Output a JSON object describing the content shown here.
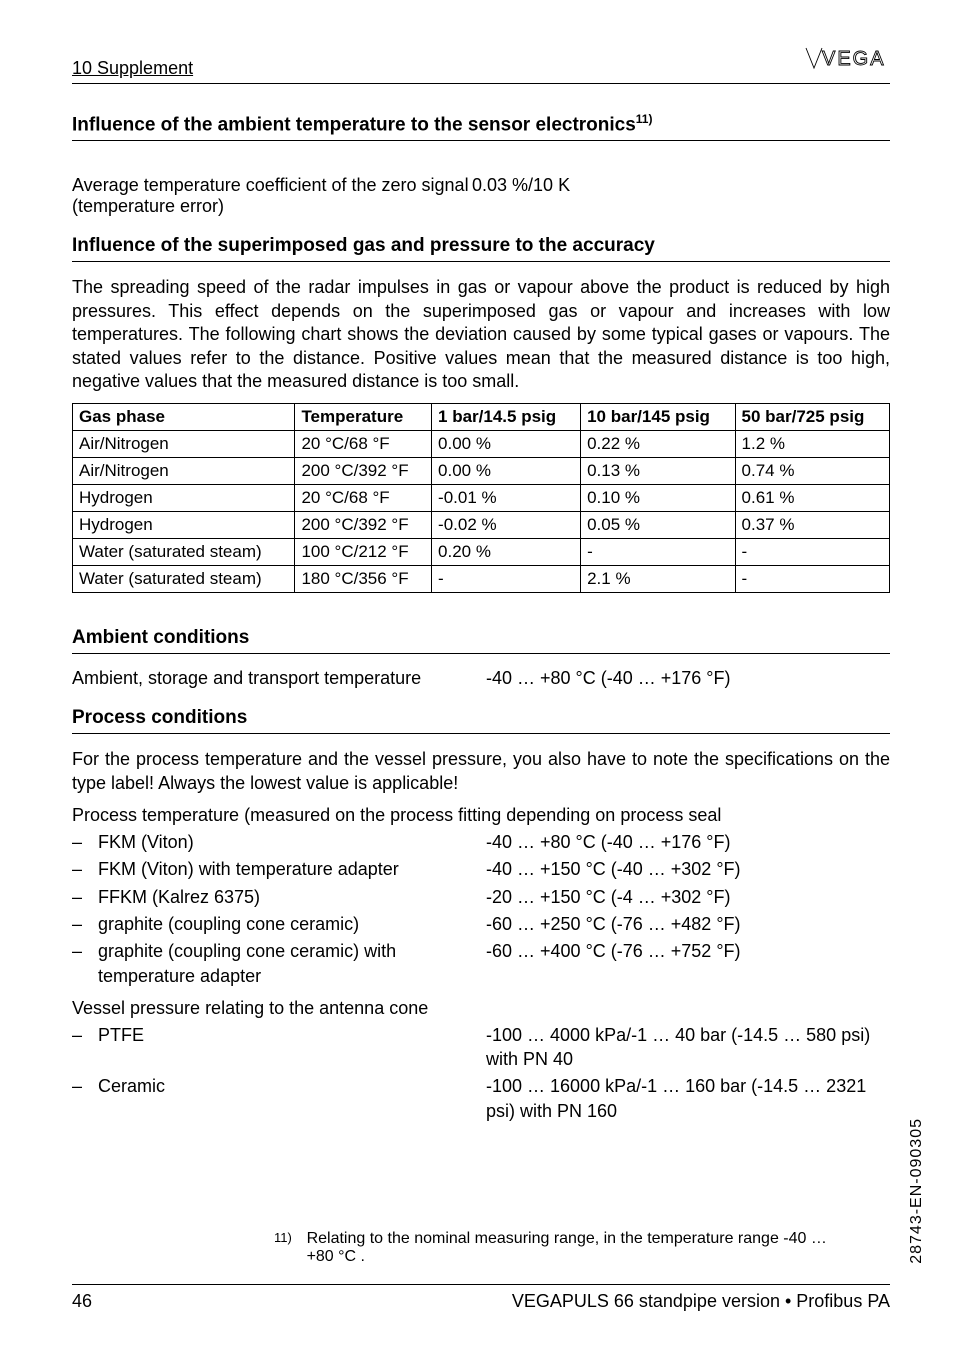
{
  "header": {
    "left": "10  Supplement",
    "logo_text": "VEGA"
  },
  "section1": {
    "title_html": "Influence of the ambient temperature to the sensor electronics",
    "title_sup": "11)",
    "row_label": "Average temperature coefficient of the zero signal (temperature error)",
    "row_value": "0.03 %/10 K"
  },
  "section2": {
    "title": "Influence of the superimposed gas and pressure to the accuracy",
    "para": "The spreading speed of the radar impulses in gas or vapour above the product is reduced by high pressures. This effect depends on the superimposed gas or vapour and increases with low temperatures. The following chart shows the deviation caused by some typical gases or vapours. The stated values refer to the distance. Positive values mean that the measured distance is too high, negative values that the measured distance is too small.",
    "table": {
      "headers": [
        "Gas phase",
        "Temperature",
        "1 bar/14.5 psig",
        "10 bar/145 psig",
        "50 bar/725 psig"
      ],
      "rows": [
        [
          "Air/Nitrogen",
          "20 °C/68 °F",
          "0.00 %",
          "0.22 %",
          "1.2 %"
        ],
        [
          "Air/Nitrogen",
          "200 °C/392 °F",
          "0.00 %",
          "0.13 %",
          "0.74 %"
        ],
        [
          "Hydrogen",
          "20 °C/68 °F",
          "-0.01 %",
          "0.10 %",
          "0.61 %"
        ],
        [
          "Hydrogen",
          "200 °C/392 °F",
          "-0.02 %",
          "0.05 %",
          "0.37 %"
        ],
        [
          "Water (saturated steam)",
          "100 °C/212 °F",
          "0.20 %",
          "-",
          "-"
        ],
        [
          "Water (saturated steam)",
          "180 °C/356 °F",
          "-",
          "2.1 %",
          "-"
        ]
      ]
    }
  },
  "section3": {
    "title": "Ambient conditions",
    "row_label": "Ambient, storage and transport temperature",
    "row_value": "-40 … +80 °C (-40 … +176 °F)"
  },
  "section4": {
    "title": "Process conditions",
    "para1": "For the process temperature and the vessel pressure, you also have to note the specifications on the type label! Always the lowest value is applicable!",
    "lead1": "Process temperature (measured on the process fitting depending on process seal",
    "list1": [
      {
        "label": "FKM (Viton)",
        "val": "-40 … +80 °C (-40 … +176 °F)"
      },
      {
        "label": "FKM (Viton) with temperature adapter",
        "val": "-40 … +150 °C (-40 … +302 °F)"
      },
      {
        "label": "FFKM (Kalrez 6375)",
        "val": "-20 … +150 °C (-4 … +302 °F)"
      },
      {
        "label": "graphite (coupling cone ceramic)",
        "val": "-60 … +250 °C (-76 … +482 °F)"
      },
      {
        "label": "graphite (coupling cone ceramic) with temperature adapter",
        "val": "-60 … +400 °C (-76 … +752 °F)"
      }
    ],
    "lead2": "Vessel pressure relating to the antenna cone",
    "list2": [
      {
        "label": "PTFE",
        "val": "-100 … 4000 kPa/-1 … 40 bar (-14.5 … 580 psi) with PN 40"
      },
      {
        "label": "Ceramic",
        "val": "-100 … 16000 kPa/-1 … 160 bar (-14.5 … 2321 psi) with PN 160"
      }
    ]
  },
  "footnote": {
    "num": "11)",
    "text": "Relating to the nominal measuring range, in the temperature range -40 … +80 °C ."
  },
  "footer": {
    "page": "46",
    "right": "VEGAPULS 66 standpipe version • Profibus PA"
  },
  "sidecode": "28743-EN-090305"
}
